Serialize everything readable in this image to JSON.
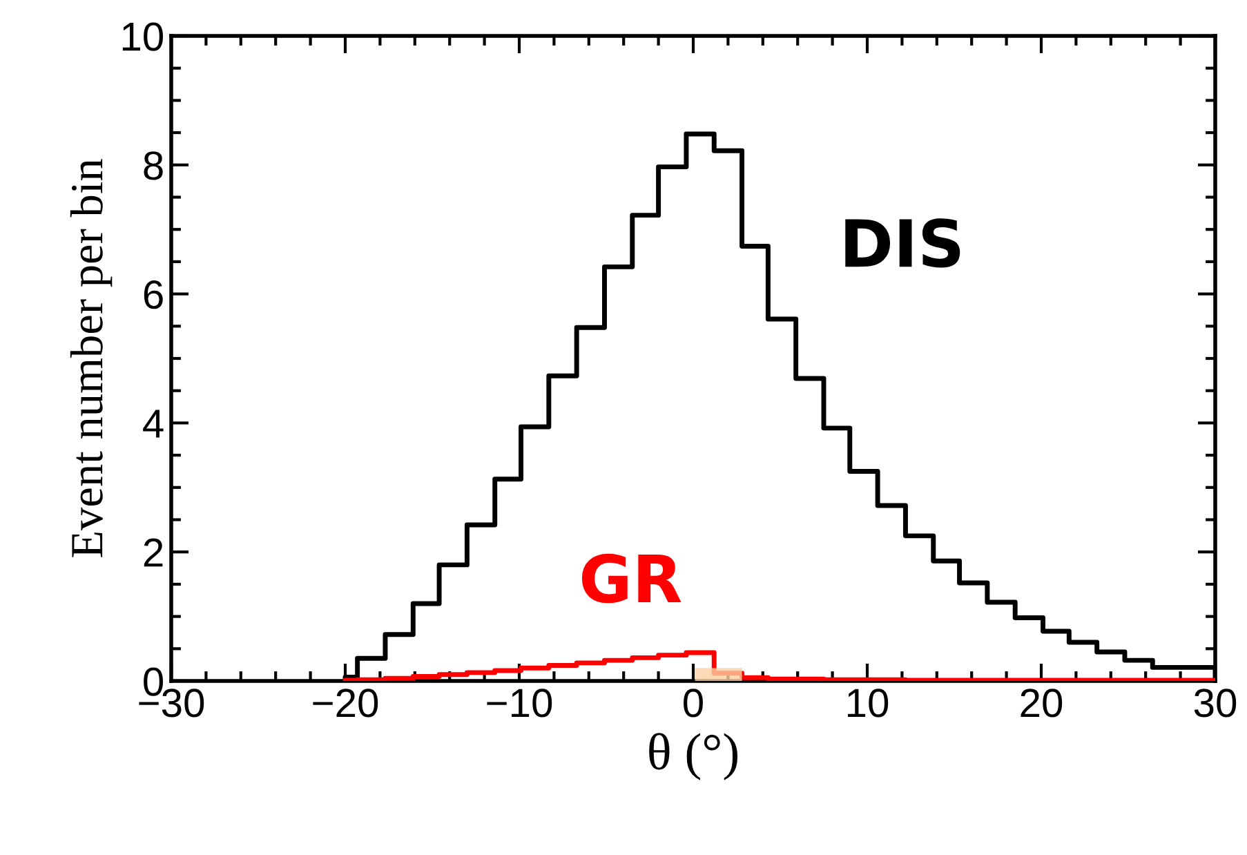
{
  "chart_data": {
    "type": "histogram",
    "xlabel": "θ (°)",
    "ylabel": "Event number per bin",
    "bins": [
      -20,
      -19.3,
      -17.7,
      -16.1,
      -14.6,
      -13.0,
      -11.4,
      -9.9,
      -8.3,
      -6.7,
      -5.1,
      -3.5,
      -2.0,
      -0.4,
      1.2,
      2.8,
      4.3,
      5.9,
      7.5,
      9.0,
      10.6,
      12.2,
      13.8,
      15.3,
      16.9,
      18.5,
      20.1,
      21.6,
      23.2,
      24.8,
      26.4,
      30
    ],
    "series": [
      {
        "bins": [
          0.1,
          2.8
        ],
        "values": [
          0.2
        ],
        "color": "#fdd0a2"
      },
      {
        "name": "DIS",
        "color": "#000000",
        "values": [
          0.06,
          0.35,
          0.72,
          1.2,
          1.8,
          2.42,
          3.13,
          3.94,
          4.73,
          5.48,
          6.42,
          7.22,
          7.97,
          8.48,
          8.22,
          6.74,
          5.61,
          4.69,
          3.92,
          3.25,
          2.72,
          2.25,
          1.86,
          1.52,
          1.22,
          0.98,
          0.77,
          0.6,
          0.45,
          0.32,
          0.21
        ]
      },
      {
        "name": "GR",
        "color": "#ff0000",
        "values": [
          0.01,
          0.02,
          0.04,
          0.07,
          0.1,
          0.13,
          0.16,
          0.2,
          0.24,
          0.28,
          0.32,
          0.36,
          0.4,
          0.44,
          0.12,
          0.05,
          0.03,
          0.03,
          0.02,
          0.02,
          0.02,
          0.01,
          0.01,
          0.01,
          0.01,
          0.01,
          0.01,
          0.01,
          0.01,
          0.01,
          0.01
        ]
      }
    ],
    "xlim": [
      -30,
      30
    ],
    "ylim": [
      0,
      10
    ],
    "xticks": [
      -30,
      -20,
      -10,
      0,
      10,
      20,
      30,
      {
        "value": -28,
        "label": null
      },
      {
        "value": -26,
        "label": null
      },
      {
        "value": -24,
        "label": null
      },
      {
        "value": -22,
        "label": null
      },
      {
        "value": -18,
        "label": null
      },
      {
        "value": -16,
        "label": null
      },
      {
        "value": -14,
        "label": null
      },
      {
        "value": -12,
        "label": null
      },
      {
        "value": -8,
        "label": null
      },
      {
        "value": -6,
        "label": null
      },
      {
        "value": -4,
        "label": null
      },
      {
        "value": -2,
        "label": null
      },
      {
        "value": 2,
        "label": null
      },
      {
        "value": 4,
        "label": null
      },
      {
        "value": 6,
        "label": null
      },
      {
        "value": 8,
        "label": null
      },
      {
        "value": 12,
        "label": null
      },
      {
        "value": 14,
        "label": null
      },
      {
        "value": 16,
        "label": null
      },
      {
        "value": 18,
        "label": null
      },
      {
        "value": 22,
        "label": null
      },
      {
        "value": 24,
        "label": null
      },
      {
        "value": 26,
        "label": null
      },
      {
        "value": 28,
        "label": null
      }
    ],
    "yticks": [
      0,
      2,
      4,
      6,
      8,
      10,
      {
        "value": 0.5,
        "label": null
      },
      {
        "value": 1,
        "label": null
      },
      {
        "value": 1.5,
        "label": null
      },
      {
        "value": 2.5,
        "label": null
      },
      {
        "value": 3,
        "label": null
      },
      {
        "value": 3.5,
        "label": null
      },
      {
        "value": 4.5,
        "label": null
      },
      {
        "value": 5,
        "label": null
      },
      {
        "value": 5.5,
        "label": null
      },
      {
        "value": 6.5,
        "label": null
      },
      {
        "value": 7,
        "label": null
      },
      {
        "value": 7.5,
        "label": null
      },
      {
        "value": 8.5,
        "label": null
      },
      {
        "value": 9,
        "label": null
      },
      {
        "value": 9.5,
        "label": null
      }
    ],
    "grid": false,
    "legend": false
  }
}
